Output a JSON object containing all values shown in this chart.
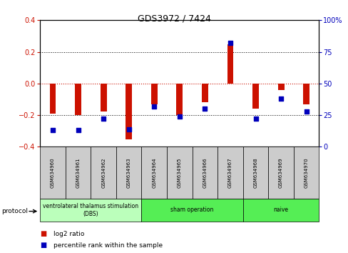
{
  "title": "GDS3972 / 7424",
  "samples": [
    "GSM634960",
    "GSM634961",
    "GSM634962",
    "GSM634963",
    "GSM634964",
    "GSM634965",
    "GSM634966",
    "GSM634967",
    "GSM634968",
    "GSM634969",
    "GSM634970"
  ],
  "log2_ratio": [
    -0.19,
    -0.2,
    -0.175,
    -0.355,
    -0.13,
    -0.2,
    -0.12,
    0.25,
    -0.16,
    -0.04,
    -0.13
  ],
  "pct_rank": [
    13,
    13,
    22,
    14,
    32,
    24,
    30,
    82,
    22,
    38,
    28
  ],
  "ylim_left": [
    -0.4,
    0.4
  ],
  "ylim_right": [
    0,
    100
  ],
  "protocol_groups": [
    {
      "label": "ventrolateral thalamus stimulation\n(DBS)",
      "start": 0,
      "end": 3,
      "color": "#bbffbb"
    },
    {
      "label": "sham operation",
      "start": 4,
      "end": 7,
      "color": "#55ee55"
    },
    {
      "label": "naive",
      "start": 8,
      "end": 10,
      "color": "#55ee55"
    }
  ],
  "bar_color": "#cc1100",
  "dot_color": "#0000bb",
  "legend_bar_label": "log2 ratio",
  "legend_dot_label": "percentile rank within the sample",
  "zero_line_color": "#cc1100",
  "label_bg": "#cccccc"
}
